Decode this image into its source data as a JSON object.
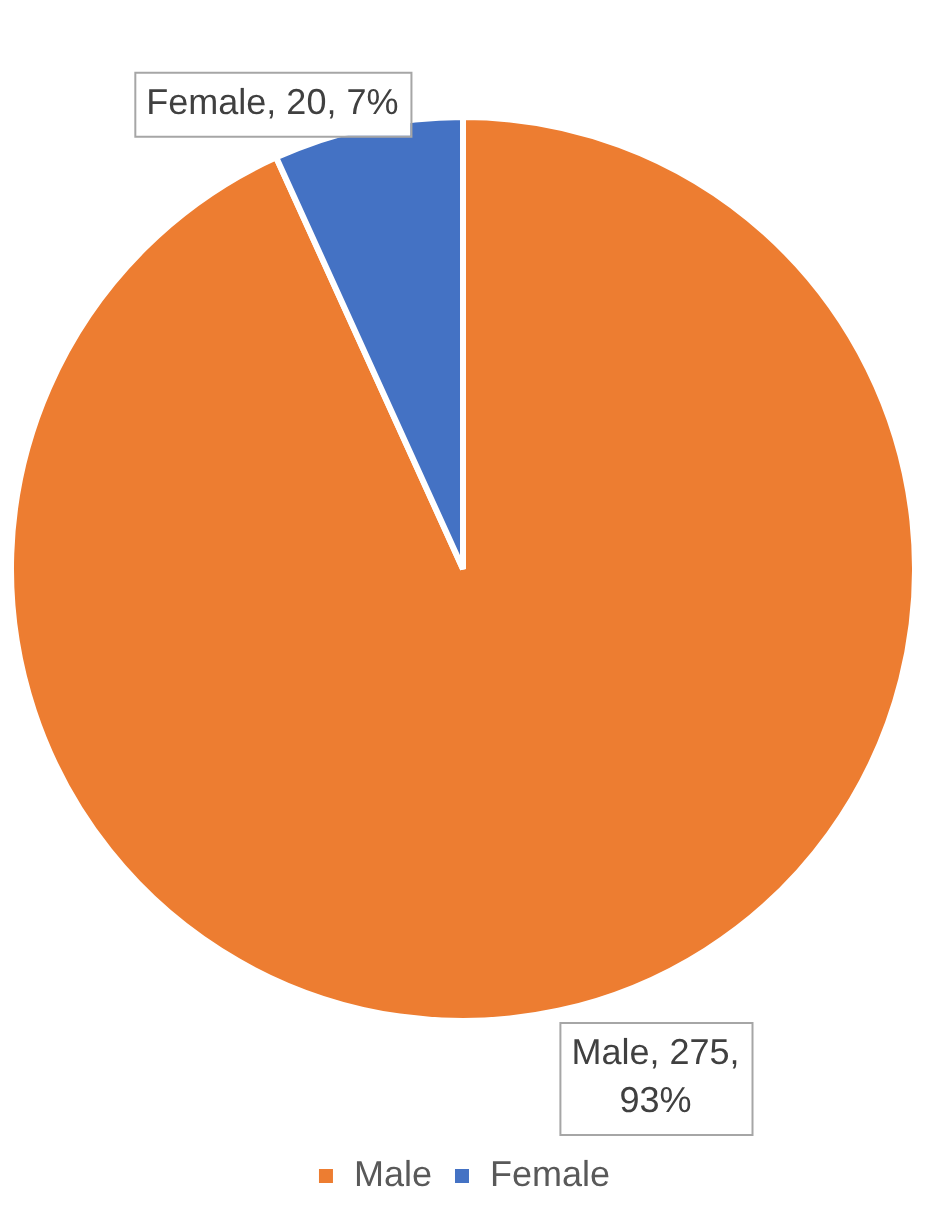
{
  "chart_data": {
    "type": "pie",
    "categories": [
      "Male",
      "Female"
    ],
    "values": [
      275,
      20
    ],
    "colors": [
      "#ed7d31",
      "#4472c4"
    ],
    "value_labels": [
      "Male, 275, 93%",
      "Female, 20, 7%"
    ],
    "legend": "bottom"
  }
}
